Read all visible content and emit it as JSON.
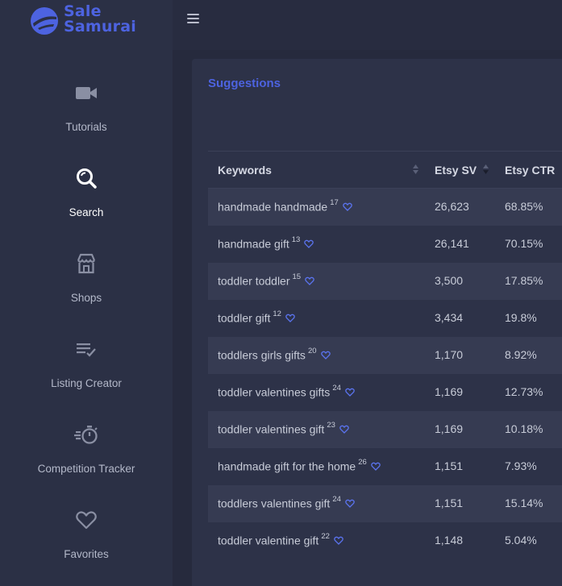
{
  "brand": {
    "line1": "Sale",
    "line2": "Samurai",
    "color": "#4d63e0"
  },
  "sidebar": {
    "items": [
      {
        "label": "Tutorials",
        "icon": "video-camera-icon",
        "active": false
      },
      {
        "label": "Search",
        "icon": "search-icon",
        "active": true
      },
      {
        "label": "Shops",
        "icon": "shop-icon",
        "active": false
      },
      {
        "label": "Listing Creator",
        "icon": "list-check-icon",
        "active": false
      },
      {
        "label": "Competition Tracker",
        "icon": "stopwatch-icon",
        "active": false
      },
      {
        "label": "Favorites",
        "icon": "heart-icon",
        "active": false
      }
    ]
  },
  "topbar": {
    "menu_icon": "hamburger-icon"
  },
  "card": {
    "title": "Suggestions",
    "table": {
      "columns": [
        "Keywords",
        "Etsy SV",
        "Etsy CTR"
      ],
      "rows": [
        {
          "keyword": "handmade handmade",
          "count": "17",
          "sv": "26,623",
          "ctr": "68.85%"
        },
        {
          "keyword": "handmade gift",
          "count": "13",
          "sv": "26,141",
          "ctr": "70.15%"
        },
        {
          "keyword": "toddler toddler",
          "count": "15",
          "sv": "3,500",
          "ctr": "17.85%"
        },
        {
          "keyword": "toddler gift",
          "count": "12",
          "sv": "3,434",
          "ctr": "19.8%"
        },
        {
          "keyword": "toddlers girls gifts",
          "count": "20",
          "sv": "1,170",
          "ctr": "8.92%"
        },
        {
          "keyword": "toddler valentines gifts",
          "count": "24",
          "sv": "1,169",
          "ctr": "12.73%"
        },
        {
          "keyword": "toddler valentines gift",
          "count": "23",
          "sv": "1,169",
          "ctr": "10.18%"
        },
        {
          "keyword": "handmade gift for the home",
          "count": "26",
          "sv": "1,151",
          "ctr": "7.93%"
        },
        {
          "keyword": "toddlers valentines gift",
          "count": "24",
          "sv": "1,151",
          "ctr": "15.14%"
        },
        {
          "keyword": "toddler valentine gift",
          "count": "22",
          "sv": "1,148",
          "ctr": "5.04%"
        }
      ]
    }
  }
}
